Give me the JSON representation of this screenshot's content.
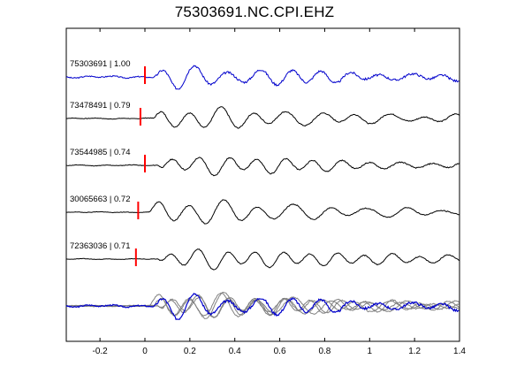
{
  "chart_data": {
    "type": "line",
    "title": "75303691.NC.CPI.EHZ",
    "xlabel": "",
    "ylabel": "",
    "xlim": [
      -0.35,
      1.4
    ],
    "xticks": [
      -0.2,
      0,
      0.2,
      0.4,
      0.6,
      0.8,
      1,
      1.2,
      1.4
    ],
    "xtick_labels": [
      "-0.2",
      "0",
      "0.2",
      "0.4",
      "0.6",
      "0.8",
      "1",
      "1.2",
      "1.4"
    ],
    "grid": false,
    "legend": "none",
    "colors": {
      "reference": "#0000cc",
      "trace": "#000000",
      "overlay": "#808080",
      "pick": "#ff0000"
    },
    "traces": [
      {
        "label": "75303691 | 1.00",
        "pick_time": 0.0,
        "color": "#0000cc",
        "wave": {
          "onset": 0.04,
          "freq": 7.2,
          "amp": 12,
          "decay": 0.35,
          "noise": 2.5,
          "seed": 3
        }
      },
      {
        "label": "73478491 | 0.79",
        "pick_time": -0.02,
        "color": "#000000",
        "wave": {
          "onset": 0.04,
          "freq": 7.0,
          "amp": 13,
          "decay": 0.3,
          "noise": 1.2,
          "seed": 7
        }
      },
      {
        "label": "73544985 | 0.74",
        "pick_time": 0.0,
        "color": "#000000",
        "wave": {
          "onset": 0.06,
          "freq": 7.5,
          "amp": 11,
          "decay": 0.35,
          "noise": 1.2,
          "seed": 11
        }
      },
      {
        "label": "30065663 | 0.72",
        "pick_time": -0.03,
        "color": "#000000",
        "wave": {
          "onset": 0.02,
          "freq": 6.4,
          "amp": 15,
          "decay": 0.25,
          "noise": 1.0,
          "seed": 19
        }
      },
      {
        "label": "72363036 | 0.71",
        "pick_time": -0.04,
        "color": "#000000",
        "wave": {
          "onset": 0.06,
          "freq": 7.8,
          "amp": 12,
          "decay": 0.4,
          "noise": 1.0,
          "seed": 23
        }
      }
    ],
    "overlay": {
      "description_visible": false,
      "count": 4
    }
  }
}
